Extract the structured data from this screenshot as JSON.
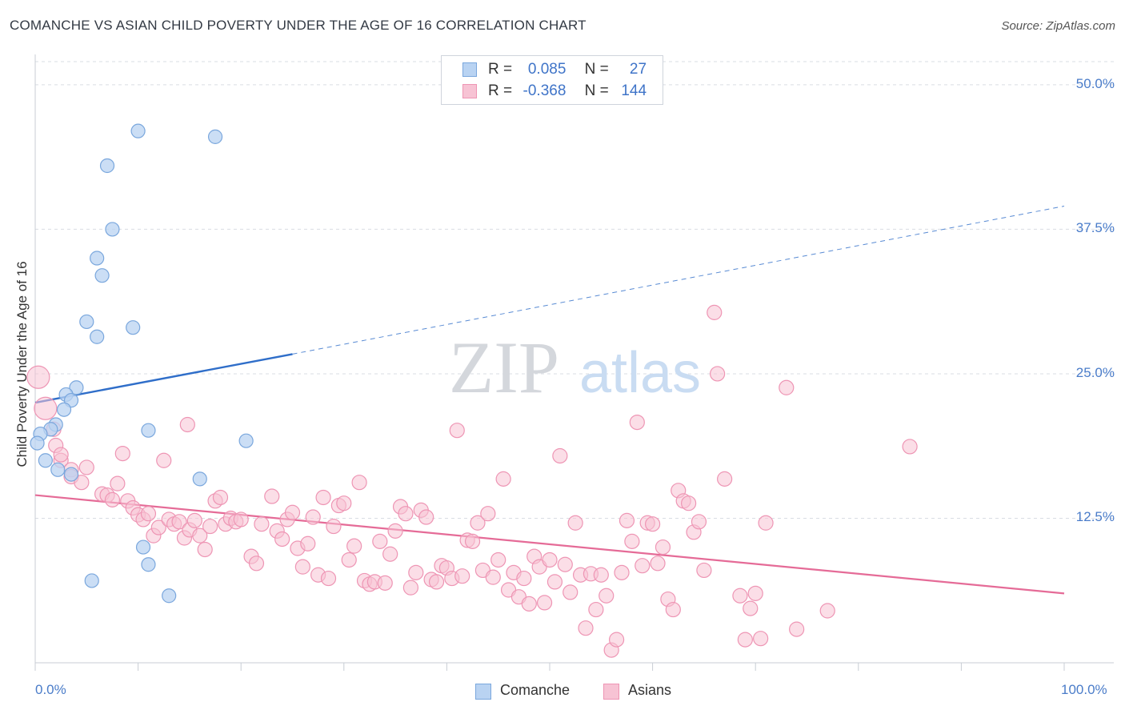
{
  "title": "COMANCHE VS ASIAN CHILD POVERTY UNDER THE AGE OF 16 CORRELATION CHART",
  "source": "Source: ZipAtlas.com",
  "watermark": {
    "part1": "ZIP",
    "part2": "atlas"
  },
  "colors": {
    "comanche_fill": "#b9d3f2",
    "comanche_stroke": "#7aa7dd",
    "comanche_line": "#2f6ec9",
    "asian_fill": "#f7c3d4",
    "asian_stroke": "#ee95b4",
    "asian_line": "#e56b97",
    "tick_text": "#4a7cc9",
    "grid": "#d9dde3"
  },
  "legend": {
    "rows": [
      {
        "r_label": "R =",
        "r_value": "0.085",
        "n_label": "N =",
        "n_value": "27"
      },
      {
        "r_label": "R =",
        "r_value": "-0.368",
        "n_label": "N =",
        "n_value": "144"
      }
    ]
  },
  "bottom_legend": {
    "comanche": "Comanche",
    "asians": "Asians"
  },
  "chart_data": {
    "type": "scatter",
    "title": "COMANCHE VS ASIAN CHILD POVERTY UNDER THE AGE OF 16 CORRELATION CHART",
    "xlabel": "",
    "ylabel": "Child Poverty Under the Age of 16",
    "xlim": [
      0,
      100
    ],
    "ylim": [
      0,
      52
    ],
    "x_tick_labels": [
      "0.0%",
      "100.0%"
    ],
    "y_ticks": [
      12.5,
      25.0,
      37.5,
      50.0
    ],
    "y_tick_labels": [
      "12.5%",
      "25.0%",
      "37.5%",
      "50.0%"
    ],
    "grid": true,
    "series": [
      {
        "name": "Comanche",
        "points": [
          [
            10,
            46.0
          ],
          [
            17.5,
            45.5
          ],
          [
            7,
            43.0
          ],
          [
            7.5,
            37.5
          ],
          [
            6,
            35.0
          ],
          [
            6.5,
            33.5
          ],
          [
            5,
            29.5
          ],
          [
            9.5,
            29.0
          ],
          [
            6,
            28.2
          ],
          [
            4,
            23.8
          ],
          [
            3,
            23.2
          ],
          [
            3.5,
            22.7
          ],
          [
            2.8,
            21.9
          ],
          [
            2,
            20.6
          ],
          [
            1.5,
            20.2
          ],
          [
            11,
            20.1
          ],
          [
            20.5,
            19.2
          ],
          [
            0.5,
            19.8
          ],
          [
            1,
            17.5
          ],
          [
            2.2,
            16.7
          ],
          [
            3.5,
            16.3
          ],
          [
            16,
            15.9
          ],
          [
            10.5,
            10.0
          ],
          [
            11,
            8.5
          ],
          [
            5.5,
            7.1
          ],
          [
            13,
            5.8
          ],
          [
            0.2,
            19.0
          ]
        ],
        "trend": {
          "x": [
            0,
            25
          ],
          "y": [
            22.5,
            26.7
          ],
          "dashed_extension": {
            "x": [
              25,
              100
            ],
            "y": [
              26.7,
              39.5
            ]
          }
        }
      },
      {
        "name": "Asians",
        "points": [
          [
            0.3,
            24.7
          ],
          [
            1,
            22.0
          ],
          [
            1.8,
            20.2
          ],
          [
            2,
            18.8
          ],
          [
            2.5,
            17.5
          ],
          [
            3.5,
            16.7
          ],
          [
            3.5,
            16.1
          ],
          [
            4.5,
            15.6
          ],
          [
            5,
            16.9
          ],
          [
            6.5,
            14.6
          ],
          [
            7,
            14.5
          ],
          [
            7.5,
            14.1
          ],
          [
            8,
            15.5
          ],
          [
            8.5,
            18.1
          ],
          [
            9,
            14.0
          ],
          [
            9.5,
            13.4
          ],
          [
            10,
            12.8
          ],
          [
            10.5,
            12.4
          ],
          [
            11,
            12.9
          ],
          [
            11.5,
            11.0
          ],
          [
            12,
            11.7
          ],
          [
            12.5,
            17.5
          ],
          [
            13,
            12.4
          ],
          [
            13.5,
            12.0
          ],
          [
            14,
            12.2
          ],
          [
            14.5,
            10.8
          ],
          [
            14.8,
            20.6
          ],
          [
            15,
            11.5
          ],
          [
            15.5,
            12.3
          ],
          [
            16,
            11.0
          ],
          [
            16.5,
            9.8
          ],
          [
            17,
            11.8
          ],
          [
            17.5,
            14.0
          ],
          [
            18,
            14.3
          ],
          [
            18.5,
            12.0
          ],
          [
            19,
            12.5
          ],
          [
            19.5,
            12.2
          ],
          [
            20,
            12.4
          ],
          [
            21,
            9.2
          ],
          [
            21.5,
            8.6
          ],
          [
            22,
            12.0
          ],
          [
            23,
            14.4
          ],
          [
            23.5,
            11.4
          ],
          [
            24,
            10.7
          ],
          [
            24.5,
            12.4
          ],
          [
            25,
            13.0
          ],
          [
            25.5,
            9.9
          ],
          [
            26,
            8.3
          ],
          [
            26.5,
            10.3
          ],
          [
            27,
            12.6
          ],
          [
            27.5,
            7.6
          ],
          [
            28,
            14.3
          ],
          [
            28.5,
            7.3
          ],
          [
            29,
            11.8
          ],
          [
            29.5,
            13.6
          ],
          [
            30,
            13.8
          ],
          [
            30.5,
            8.9
          ],
          [
            31,
            10.1
          ],
          [
            31.5,
            15.6
          ],
          [
            32,
            7.1
          ],
          [
            32.5,
            6.8
          ],
          [
            33,
            7.0
          ],
          [
            33.5,
            10.5
          ],
          [
            34,
            6.9
          ],
          [
            34.5,
            9.4
          ],
          [
            35,
            11.4
          ],
          [
            35.5,
            13.5
          ],
          [
            36,
            12.9
          ],
          [
            36.5,
            6.5
          ],
          [
            37,
            7.8
          ],
          [
            37.5,
            13.2
          ],
          [
            38,
            12.6
          ],
          [
            38.5,
            7.2
          ],
          [
            39,
            7.0
          ],
          [
            39.5,
            8.4
          ],
          [
            40,
            8.2
          ],
          [
            40.5,
            7.3
          ],
          [
            41,
            20.1
          ],
          [
            41.5,
            7.5
          ],
          [
            42,
            10.6
          ],
          [
            42.5,
            10.5
          ],
          [
            43,
            12.1
          ],
          [
            43.5,
            8.0
          ],
          [
            44,
            12.9
          ],
          [
            44.5,
            7.4
          ],
          [
            45,
            8.9
          ],
          [
            45.5,
            15.9
          ],
          [
            46,
            6.3
          ],
          [
            46.5,
            7.8
          ],
          [
            47,
            5.7
          ],
          [
            47.5,
            7.3
          ],
          [
            48,
            5.1
          ],
          [
            48.5,
            9.2
          ],
          [
            49,
            8.3
          ],
          [
            49.5,
            5.2
          ],
          [
            50,
            8.9
          ],
          [
            50.5,
            7.0
          ],
          [
            51,
            17.9
          ],
          [
            51.5,
            8.5
          ],
          [
            52,
            6.1
          ],
          [
            52.5,
            12.1
          ],
          [
            53,
            7.6
          ],
          [
            53.5,
            3.0
          ],
          [
            54,
            7.7
          ],
          [
            54.5,
            4.6
          ],
          [
            55,
            7.6
          ],
          [
            55.5,
            5.8
          ],
          [
            56,
            1.1
          ],
          [
            56.5,
            2.0
          ],
          [
            57,
            7.8
          ],
          [
            57.5,
            12.3
          ],
          [
            58,
            10.5
          ],
          [
            58.5,
            20.8
          ],
          [
            59,
            8.4
          ],
          [
            59.5,
            12.1
          ],
          [
            60,
            12.0
          ],
          [
            60.5,
            8.6
          ],
          [
            61,
            10.0
          ],
          [
            61.5,
            5.5
          ],
          [
            62,
            4.6
          ],
          [
            62.5,
            14.9
          ],
          [
            63,
            14.0
          ],
          [
            63.5,
            13.8
          ],
          [
            64,
            11.3
          ],
          [
            64.5,
            12.2
          ],
          [
            65,
            8.0
          ],
          [
            66,
            30.3
          ],
          [
            66.3,
            25.0
          ],
          [
            67,
            15.9
          ],
          [
            68.5,
            5.8
          ],
          [
            69,
            2.0
          ],
          [
            69.5,
            4.7
          ],
          [
            70,
            6.0
          ],
          [
            70.5,
            2.1
          ],
          [
            71,
            12.1
          ],
          [
            73,
            23.8
          ],
          [
            74,
            2.9
          ],
          [
            77,
            4.5
          ],
          [
            85,
            18.7
          ],
          [
            2.5,
            18.0
          ]
        ],
        "trend": {
          "x": [
            0,
            100
          ],
          "y": [
            14.5,
            6.0
          ]
        }
      }
    ]
  }
}
